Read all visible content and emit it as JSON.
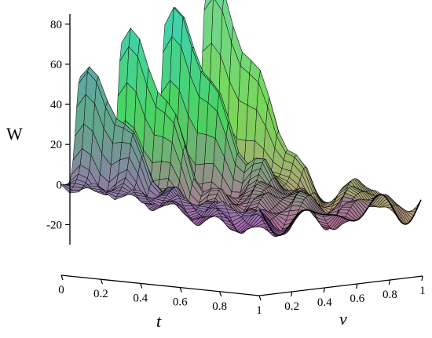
{
  "chart_data": {
    "type": "surface",
    "title": "",
    "axes": {
      "w": {
        "label": "W",
        "ticks": [
          -20,
          0,
          20,
          40,
          60,
          80
        ],
        "range": [
          -30,
          85
        ]
      },
      "t": {
        "label": "t",
        "ticks": [
          0,
          0.2,
          0.4,
          0.6,
          0.8,
          1
        ],
        "range": [
          0,
          1
        ]
      },
      "v": {
        "label": "v",
        "ticks": [
          0.2,
          0.4,
          0.6,
          0.8,
          1
        ],
        "range": [
          0,
          1
        ]
      }
    },
    "colors": {
      "low_magenta": "#d64fb0",
      "mid_green": "#4bd35f",
      "high_cyan": "#3fd0cf",
      "violet": "#8a5bd9",
      "yellow_green": "#c8e04a",
      "mesh_stroke": "#000000"
    },
    "surface": {
      "description_series": "W(t,v): oscillating floor around 0 to -20 with four tall ridges",
      "peaks": [
        {
          "t": 0.03,
          "v": 0.12,
          "w": 50
        },
        {
          "t": 0.05,
          "v": 0.38,
          "w": 65
        },
        {
          "t": 0.07,
          "v": 0.65,
          "w": 75
        },
        {
          "t": 0.06,
          "v": 0.9,
          "w": 85
        }
      ],
      "floor_range": [
        -30,
        10
      ]
    }
  }
}
